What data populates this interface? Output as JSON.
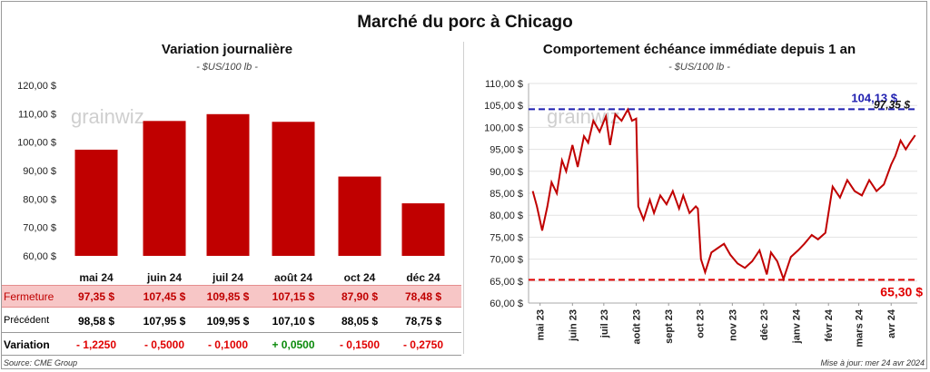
{
  "main_title": "Marché du porc à Chicago",
  "colors": {
    "bar": "#c00000",
    "line": "#c00000",
    "high": "#1f1fb0",
    "low": "#e00000",
    "positive": "#0a8a0a",
    "negative": "#e00000"
  },
  "left": {
    "title": "Variation  journalière",
    "unit": "- $US/100 lb -",
    "watermark": "grainwiz",
    "table": {
      "row_labels": {
        "close": "Fermeture",
        "previous": "Précédent",
        "variation": "Variation"
      },
      "columns": [
        {
          "month": "mai 24",
          "close": "97,35  $",
          "previous": "98,58  $",
          "variation": "- 1,2250"
        },
        {
          "month": "juin 24",
          "close": "107,45  $",
          "previous": "107,95  $",
          "variation": "- 0,5000"
        },
        {
          "month": "juil 24",
          "close": "109,85  $",
          "previous": "109,95  $",
          "variation": "- 0,1000"
        },
        {
          "month": "août 24",
          "close": "107,15  $",
          "previous": "107,10  $",
          "variation": "+ 0,0500"
        },
        {
          "month": "oct 24",
          "close": "87,90  $",
          "previous": "88,05  $",
          "variation": "- 0,1500"
        },
        {
          "month": "déc 24",
          "close": "78,48  $",
          "previous": "78,75  $",
          "variation": "- 0,2750"
        }
      ]
    }
  },
  "right": {
    "title": "Comportement  échéance immédiate depuis 1 an",
    "unit": "- $US/100 lb -",
    "watermark": "grainwiz",
    "high_label": "104,13 $",
    "last_label": "97,35 $",
    "low_label": "65,30 $"
  },
  "footer": {
    "source": "Source: CME Group",
    "updated": "Mise à jour: mer 24 avr 2024"
  },
  "chart_data": [
    {
      "type": "bar",
      "title": "Variation  journalière",
      "subtitle": "- $US/100 lb -",
      "categories": [
        "mai 24",
        "juin 24",
        "juil 24",
        "août 24",
        "oct 24",
        "déc 24"
      ],
      "values": [
        97.35,
        107.45,
        109.85,
        107.15,
        87.9,
        78.48
      ],
      "ylim": [
        60,
        120
      ],
      "yticks": [
        "60,00 $",
        "70,00 $",
        "80,00 $",
        "90,00 $",
        "100,00 $",
        "110,00 $",
        "120,00 $"
      ],
      "grid": false
    },
    {
      "type": "line",
      "title": "Comportement  échéance immédiate depuis 1 an",
      "subtitle": "- $US/100 lb -",
      "ylim": [
        60,
        110
      ],
      "yticks": [
        "60,00 $",
        "65,00 $",
        "70,00 $",
        "75,00 $",
        "80,00 $",
        "85,00 $",
        "90,00 $",
        "95,00 $",
        "100,00 $",
        "105,00 $",
        "110,00 $"
      ],
      "xticks": [
        "mai 23",
        "juin 23",
        "juil 23",
        "août 23",
        "sept 23",
        "oct 23",
        "nov 23",
        "déc 23",
        "janv 24",
        "févr 24",
        "mars 24",
        "avr 24"
      ],
      "grid": true,
      "reference_lines": [
        {
          "label": "104,13 $",
          "value": 104.13
        },
        {
          "label": "65,30 $",
          "value": 65.3
        }
      ],
      "series": [
        {
          "x": [
            "2023-04-24",
            "2023-04-28",
            "2023-05-03",
            "2023-05-08",
            "2023-05-12",
            "2023-05-17",
            "2023-05-22",
            "2023-05-26",
            "2023-06-01",
            "2023-06-06",
            "2023-06-12",
            "2023-06-16",
            "2023-06-21",
            "2023-06-27",
            "2023-07-03",
            "2023-07-07",
            "2023-07-12",
            "2023-07-18",
            "2023-07-24",
            "2023-07-28",
            "2023-08-01",
            "2023-08-03",
            "2023-08-08",
            "2023-08-14",
            "2023-08-18",
            "2023-08-24",
            "2023-08-30",
            "2023-09-05",
            "2023-09-11",
            "2023-09-15",
            "2023-09-21",
            "2023-09-27",
            "2023-09-29",
            "2023-10-02",
            "2023-10-06",
            "2023-10-12",
            "2023-10-18",
            "2023-10-24",
            "2023-10-30",
            "2023-11-06",
            "2023-11-13",
            "2023-11-20",
            "2023-11-27",
            "2023-12-04",
            "2023-12-08",
            "2023-12-14",
            "2023-12-20",
            "2023-12-27",
            "2024-01-03",
            "2024-01-09",
            "2024-01-16",
            "2024-01-22",
            "2024-01-29",
            "2024-02-05",
            "2024-02-12",
            "2024-02-19",
            "2024-02-26",
            "2024-03-04",
            "2024-03-11",
            "2024-03-18",
            "2024-03-25",
            "2024-04-01",
            "2024-04-05",
            "2024-04-10",
            "2024-04-15",
            "2024-04-19",
            "2024-04-24"
          ],
          "y": [
            85.5,
            82.0,
            76.5,
            82.0,
            87.5,
            85.0,
            92.5,
            90.0,
            96.0,
            91.0,
            98.0,
            96.5,
            101.5,
            99.0,
            102.5,
            96.0,
            103.0,
            101.5,
            104.1,
            101.5,
            102.0,
            82.0,
            79.0,
            83.5,
            80.5,
            84.5,
            82.5,
            85.5,
            81.5,
            84.5,
            80.5,
            82.0,
            81.5,
            70.0,
            67.0,
            71.5,
            72.5,
            73.5,
            71.0,
            69.0,
            68.0,
            69.5,
            72.0,
            66.5,
            71.5,
            69.5,
            65.5,
            70.5,
            72.0,
            73.5,
            75.5,
            74.5,
            76.0,
            86.5,
            84.0,
            88.0,
            85.5,
            84.5,
            88.0,
            85.5,
            87.0,
            91.5,
            93.5,
            97.0,
            95.0,
            96.5,
            98.2
          ]
        }
      ],
      "last_value_label": "97,35 $"
    }
  ]
}
